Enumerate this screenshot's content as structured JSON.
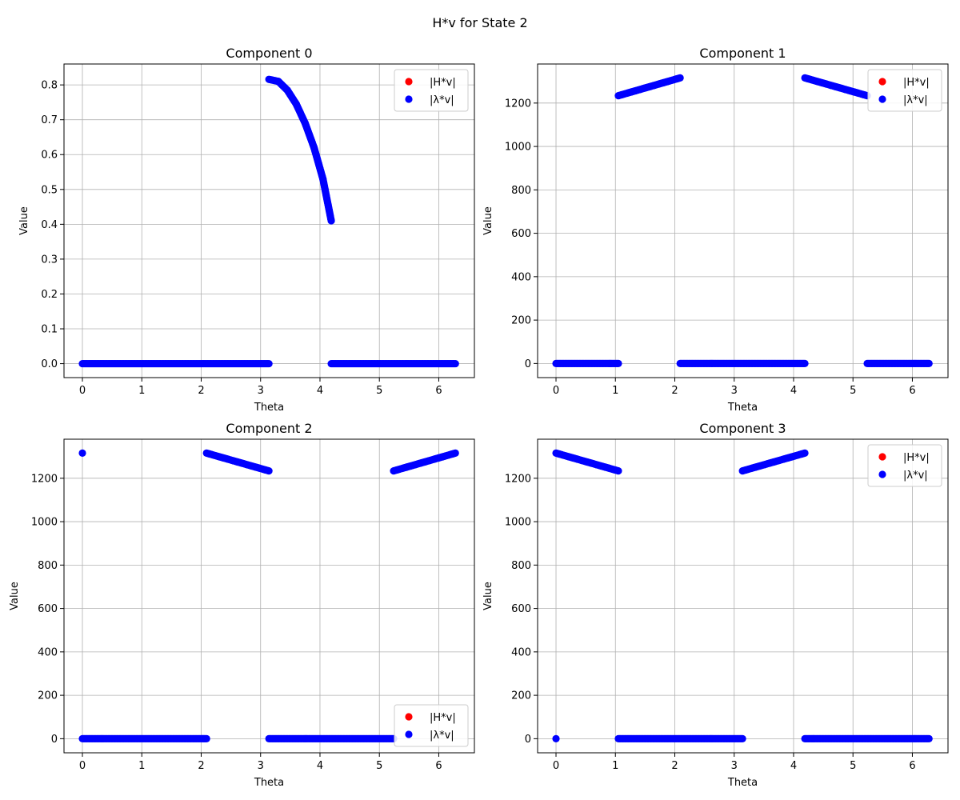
{
  "figure": {
    "suptitle": "H*v for State 2"
  },
  "chart_data": [
    {
      "type": "scatter",
      "title": "Component 0",
      "xlabel": "Theta",
      "ylabel": "Value",
      "xlim": [
        -0.31,
        6.6
      ],
      "ylim": [
        -0.04,
        0.86
      ],
      "xticks": [
        0,
        1,
        2,
        3,
        4,
        5,
        6
      ],
      "yticks": [
        0.0,
        0.1,
        0.2,
        0.3,
        0.4,
        0.5,
        0.6,
        0.7,
        0.8
      ],
      "ytick_decimals": 1,
      "grid": true,
      "legend_position": "upper right",
      "series": [
        {
          "name": "|H*v|",
          "color": "#ff0000",
          "segments": []
        },
        {
          "name": "|λ*v|",
          "color": "#0000ff",
          "segments": [
            {
              "points": [
                [
                  0.0,
                  0.0
                ],
                [
                  3.14,
                  0.0
                ]
              ]
            },
            {
              "points": [
                [
                  3.14,
                  0.816
                ],
                [
                  3.3,
                  0.81
                ],
                [
                  3.45,
                  0.785
                ],
                [
                  3.6,
                  0.745
                ],
                [
                  3.75,
                  0.69
                ],
                [
                  3.9,
                  0.62
                ],
                [
                  4.05,
                  0.53
                ],
                [
                  4.19,
                  0.41
                ]
              ]
            },
            {
              "points": [
                [
                  4.19,
                  0.0
                ],
                [
                  6.28,
                  0.0
                ]
              ]
            }
          ]
        }
      ]
    },
    {
      "type": "scatter",
      "title": "Component 1",
      "xlabel": "Theta",
      "ylabel": "Value",
      "xlim": [
        -0.31,
        6.6
      ],
      "ylim": [
        -65,
        1380
      ],
      "xticks": [
        0,
        1,
        2,
        3,
        4,
        5,
        6
      ],
      "yticks": [
        0,
        200,
        400,
        600,
        800,
        1000,
        1200
      ],
      "ytick_decimals": 0,
      "grid": true,
      "legend_position": "upper right",
      "series": [
        {
          "name": "|H*v|",
          "color": "#ff0000",
          "segments": []
        },
        {
          "name": "|λ*v|",
          "color": "#0000ff",
          "segments": [
            {
              "points": [
                [
                  0.0,
                  0.0
                ],
                [
                  1.05,
                  0.0
                ]
              ]
            },
            {
              "points": [
                [
                  1.05,
                  1234
                ],
                [
                  2.09,
                  1316
                ]
              ]
            },
            {
              "points": [
                [
                  2.09,
                  0.0
                ],
                [
                  4.19,
                  0.0
                ]
              ]
            },
            {
              "points": [
                [
                  4.19,
                  1316
                ],
                [
                  5.24,
                  1234
                ]
              ]
            },
            {
              "points": [
                [
                  5.24,
                  0.0
                ],
                [
                  6.28,
                  0.0
                ]
              ]
            }
          ]
        }
      ]
    },
    {
      "type": "scatter",
      "title": "Component 2",
      "xlabel": "Theta",
      "ylabel": "Value",
      "xlim": [
        -0.31,
        6.6
      ],
      "ylim": [
        -65,
        1380
      ],
      "xticks": [
        0,
        1,
        2,
        3,
        4,
        5,
        6
      ],
      "yticks": [
        0,
        200,
        400,
        600,
        800,
        1000,
        1200
      ],
      "ytick_decimals": 0,
      "grid": true,
      "legend_position": "lower right",
      "series": [
        {
          "name": "|H*v|",
          "color": "#ff0000",
          "segments": []
        },
        {
          "name": "|λ*v|",
          "color": "#0000ff",
          "segments": [
            {
              "points": [
                [
                  0.0,
                  1316
                ]
              ]
            },
            {
              "points": [
                [
                  0.0,
                  0.0
                ],
                [
                  2.09,
                  0.0
                ]
              ]
            },
            {
              "points": [
                [
                  2.09,
                  1316
                ],
                [
                  3.14,
                  1234
                ]
              ]
            },
            {
              "points": [
                [
                  3.14,
                  0.0
                ],
                [
                  5.24,
                  0.0
                ]
              ]
            },
            {
              "points": [
                [
                  5.24,
                  1234
                ],
                [
                  6.28,
                  1316
                ]
              ]
            }
          ]
        }
      ]
    },
    {
      "type": "scatter",
      "title": "Component 3",
      "xlabel": "Theta",
      "ylabel": "Value",
      "xlim": [
        -0.31,
        6.6
      ],
      "ylim": [
        -65,
        1380
      ],
      "xticks": [
        0,
        1,
        2,
        3,
        4,
        5,
        6
      ],
      "yticks": [
        0,
        200,
        400,
        600,
        800,
        1000,
        1200
      ],
      "ytick_decimals": 0,
      "grid": true,
      "legend_position": "upper right",
      "series": [
        {
          "name": "|H*v|",
          "color": "#ff0000",
          "segments": []
        },
        {
          "name": "|λ*v|",
          "color": "#0000ff",
          "segments": [
            {
              "points": [
                [
                  0.0,
                  0.0
                ]
              ]
            },
            {
              "points": [
                [
                  0.0,
                  1316
                ],
                [
                  1.05,
                  1234
                ]
              ]
            },
            {
              "points": [
                [
                  1.05,
                  0.0
                ],
                [
                  3.14,
                  0.0
                ]
              ]
            },
            {
              "points": [
                [
                  3.14,
                  1234
                ],
                [
                  4.19,
                  1316
                ]
              ]
            },
            {
              "points": [
                [
                  4.19,
                  0.0
                ],
                [
                  6.28,
                  0.0
                ]
              ]
            }
          ]
        }
      ]
    }
  ]
}
